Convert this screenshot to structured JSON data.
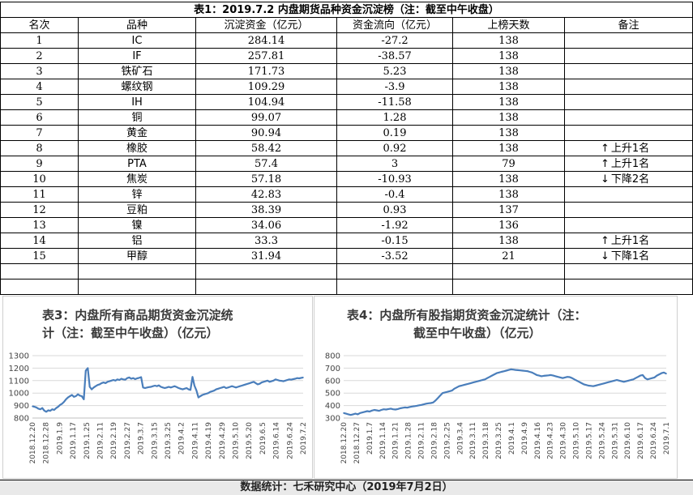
{
  "table1": {
    "title": "表1：2019.7.2 内盘期货品种资金沉淀榜（注：截至中午收盘）",
    "headers": [
      "名次",
      "品种",
      "沉淀资金（亿元）",
      "资金流向（亿元）",
      "上榜天数",
      "备注"
    ],
    "rows": [
      {
        "rank": "1",
        "name": "IC",
        "amount": "284.14",
        "flow": "-27.2",
        "days": "138",
        "note": ""
      },
      {
        "rank": "2",
        "name": "IF",
        "amount": "257.81",
        "flow": "-38.57",
        "days": "138",
        "note": ""
      },
      {
        "rank": "3",
        "name": "铁矿石",
        "amount": "171.73",
        "flow": "5.23",
        "days": "138",
        "note": ""
      },
      {
        "rank": "4",
        "name": "螺纹钢",
        "amount": "109.29",
        "flow": "-3.9",
        "days": "138",
        "note": ""
      },
      {
        "rank": "5",
        "name": "IH",
        "amount": "104.94",
        "flow": "-11.58",
        "days": "138",
        "note": ""
      },
      {
        "rank": "6",
        "name": "铜",
        "amount": "99.07",
        "flow": "1.28",
        "days": "138",
        "note": ""
      },
      {
        "rank": "7",
        "name": "黄金",
        "amount": "90.94",
        "flow": "0.19",
        "days": "138",
        "note": ""
      },
      {
        "rank": "8",
        "name": "橡胶",
        "amount": "58.42",
        "flow": "0.92",
        "days": "138",
        "note": "上升1名",
        "dir": "up"
      },
      {
        "rank": "9",
        "name": "PTA",
        "amount": "57.4",
        "flow": "3",
        "days": "79",
        "note": "上升1名",
        "dir": "up"
      },
      {
        "rank": "10",
        "name": "焦炭",
        "amount": "57.18",
        "flow": "-10.93",
        "days": "138",
        "note": "下降2名",
        "dir": "down"
      },
      {
        "rank": "11",
        "name": "锌",
        "amount": "42.83",
        "flow": "-0.4",
        "days": "138",
        "note": ""
      },
      {
        "rank": "12",
        "name": "豆粕",
        "amount": "38.39",
        "flow": "0.93",
        "days": "137",
        "note": ""
      },
      {
        "rank": "13",
        "name": "镍",
        "amount": "34.06",
        "flow": "-1.92",
        "days": "136",
        "note": ""
      },
      {
        "rank": "14",
        "name": "铝",
        "amount": "33.3",
        "flow": "-0.15",
        "days": "138",
        "note": "上升1名",
        "dir": "up"
      },
      {
        "rank": "15",
        "name": "甲醇",
        "amount": "31.94",
        "flow": "-3.52",
        "days": "21",
        "note": "下降1名",
        "dir": "down"
      }
    ]
  },
  "icons": {
    "up": "arrow-up-icon",
    "down": "arrow-down-icon"
  },
  "footer": "数据统计：七禾研究中心（2019年7月2日）",
  "colors": {
    "line": "#4a7ebb",
    "grid": "#d9d9d9",
    "title": "#3a3a3a"
  },
  "chart_data": [
    {
      "type": "line",
      "title": "表3：内盘所有商品期货资金沉淀统计（注：截至中午收盘）（亿元）",
      "title_lines": [
        "表3：内盘所有商品期货资金沉淀统",
        "计（注：截至中午收盘）（亿元）"
      ],
      "ylim": [
        800,
        1300
      ],
      "yticks": [
        "800",
        "900",
        "1000",
        "1100",
        "1200",
        "1300"
      ],
      "xticks": [
        "2018.12.20",
        "2018.12.28",
        "2019.1.9",
        "2019.1.17",
        "2019.1.25",
        "2019.2.11",
        "2019.2.19",
        "2019.2.27",
        "2019.3.7",
        "2019.3.15",
        "2019.3.25",
        "2019.4.2",
        "2019.4.11",
        "2019.4.19",
        "2019.4.29",
        "2019.5.10",
        "2019.5.20",
        "2019.6.5",
        "2019.6.14",
        "2019.6.24",
        "2019.7.2"
      ],
      "grid": true,
      "x": [
        0,
        1,
        2,
        3,
        4,
        5,
        6,
        7,
        8,
        9,
        10,
        11,
        12,
        13,
        14,
        15,
        16,
        17,
        18,
        19,
        20,
        21,
        22,
        23,
        24,
        25,
        26,
        27,
        28,
        29,
        30,
        31,
        32,
        33,
        34,
        35,
        36,
        37,
        38,
        39,
        40,
        41,
        42,
        43,
        44,
        45,
        46,
        47,
        48,
        49,
        50,
        51,
        52,
        53,
        54,
        55,
        56,
        57,
        58,
        59,
        60,
        61,
        62,
        63,
        64,
        65,
        66,
        67,
        68,
        69,
        70,
        71,
        72,
        73,
        74,
        75,
        76,
        77,
        78,
        79,
        80,
        81,
        82,
        83,
        84,
        85,
        86,
        87,
        88,
        89,
        90,
        91,
        92,
        93,
        94,
        95,
        96,
        97,
        98,
        99,
        100,
        101,
        102,
        103,
        104,
        105,
        106,
        107,
        108,
        109,
        110,
        111,
        112,
        113,
        114,
        115,
        116,
        117,
        118,
        119,
        120,
        121,
        122,
        123,
        124,
        125,
        126,
        127,
        128,
        129,
        130,
        131,
        132,
        133,
        134,
        135,
        136,
        137
      ],
      "values": [
        895,
        890,
        885,
        875,
        870,
        880,
        860,
        850,
        862,
        858,
        870,
        865,
        880,
        890,
        905,
        915,
        930,
        950,
        965,
        975,
        985,
        970,
        975,
        990,
        980,
        975,
        950,
        1180,
        1200,
        1050,
        1030,
        1045,
        1055,
        1065,
        1070,
        1080,
        1085,
        1080,
        1090,
        1095,
        1100,
        1105,
        1100,
        1110,
        1105,
        1115,
        1110,
        1108,
        1120,
        1125,
        1115,
        1120,
        1112,
        1118,
        1122,
        1128,
        1045,
        1040,
        1045,
        1048,
        1050,
        1055,
        1060,
        1055,
        1062,
        1050,
        1045,
        1040,
        1045,
        1050,
        1045,
        1050,
        1055,
        1048,
        1040,
        1035,
        1030,
        1035,
        1040,
        1030,
        1025,
        1130,
        1060,
        1020,
        965,
        975,
        985,
        990,
        995,
        1000,
        1010,
        1015,
        1020,
        1030,
        1035,
        1040,
        1045,
        1050,
        1040,
        1045,
        1050,
        1055,
        1050,
        1045,
        1050,
        1055,
        1060,
        1065,
        1070,
        1075,
        1080,
        1085,
        1090,
        1080,
        1070,
        1075,
        1085,
        1090,
        1095,
        1100,
        1090,
        1095,
        1100,
        1110,
        1105,
        1100,
        1098,
        1095,
        1100,
        1105,
        1110,
        1108,
        1112,
        1115,
        1120,
        1118,
        1122,
        1125
      ]
    },
    {
      "type": "line",
      "title": "表4：内盘所有股指期货资金沉淀统计（注：截至中午收盘）（亿元）",
      "title_lines": [
        "表4：内盘所有股指期货资金沉淀统计（注：",
        "截至中午收盘）（亿元）"
      ],
      "ylim": [
        300,
        800
      ],
      "yticks": [
        "300",
        "400",
        "500",
        "600",
        "700",
        "800"
      ],
      "xticks": [
        "2018.12.20",
        "2018.12.27",
        "2019.1.7",
        "2019.1.14",
        "2019.1.21",
        "2019.1.28",
        "2019.2.11",
        "2019.2.18",
        "2019.2.25",
        "2019.3.4",
        "2019.3.11",
        "2019.3.18",
        "2019.3.25",
        "2019.4.1",
        "2019.4.9",
        "2019.4.16",
        "2019.4.23",
        "2019.4.30",
        "2019.5.10",
        "2019.5.17",
        "2019.5.24",
        "2019.5.31",
        "2019.6.10",
        "2019.6.17",
        "2019.6.24",
        "2019.7.1"
      ],
      "grid": true,
      "x": [
        0,
        1,
        2,
        3,
        4,
        5,
        6,
        7,
        8,
        9,
        10,
        11,
        12,
        13,
        14,
        15,
        16,
        17,
        18,
        19,
        20,
        21,
        22,
        23,
        24,
        25,
        26,
        27,
        28,
        29,
        30,
        31,
        32,
        33,
        34,
        35,
        36,
        37,
        38,
        39,
        40,
        41,
        42,
        43,
        44,
        45,
        46,
        47,
        48,
        49,
        50,
        51,
        52,
        53,
        54,
        55,
        56,
        57,
        58,
        59,
        60,
        61,
        62,
        63,
        64,
        65,
        66,
        67,
        68,
        69,
        70,
        71,
        72,
        73,
        74,
        75,
        76,
        77,
        78,
        79,
        80,
        81,
        82,
        83,
        84,
        85,
        86,
        87,
        88,
        89,
        90,
        91,
        92,
        93,
        94,
        95,
        96,
        97,
        98,
        99,
        100,
        101,
        102,
        103,
        104,
        105,
        106,
        107,
        108,
        109,
        110,
        111,
        112,
        113,
        114,
        115,
        116,
        117,
        118,
        119,
        120,
        121,
        122,
        123,
        124,
        125,
        126,
        127,
        128,
        129,
        130,
        131,
        132,
        133,
        134,
        135,
        136,
        137
      ],
      "values": [
        340,
        335,
        330,
        325,
        330,
        335,
        330,
        340,
        345,
        350,
        355,
        352,
        360,
        365,
        362,
        358,
        365,
        370,
        368,
        372,
        375,
        370,
        368,
        372,
        378,
        382,
        385,
        383,
        388,
        392,
        395,
        398,
        402,
        405,
        410,
        415,
        418,
        420,
        425,
        440,
        460,
        480,
        500,
        505,
        510,
        515,
        520,
        535,
        545,
        555,
        560,
        565,
        570,
        575,
        580,
        585,
        590,
        595,
        600,
        605,
        610,
        620,
        630,
        640,
        650,
        660,
        665,
        670,
        675,
        680,
        685,
        690,
        688,
        686,
        684,
        682,
        680,
        678,
        676,
        670,
        665,
        655,
        645,
        640,
        635,
        638,
        640,
        642,
        645,
        640,
        635,
        630,
        625,
        620,
        625,
        630,
        628,
        620,
        610,
        600,
        590,
        580,
        570,
        565,
        560,
        558,
        555,
        560,
        565,
        570,
        575,
        580,
        585,
        590,
        595,
        600,
        605,
        600,
        595,
        590,
        595,
        600,
        605,
        610,
        620,
        630,
        640,
        645,
        620,
        610,
        615,
        620,
        625,
        640,
        650,
        660,
        665,
        655
      ]
    }
  ]
}
